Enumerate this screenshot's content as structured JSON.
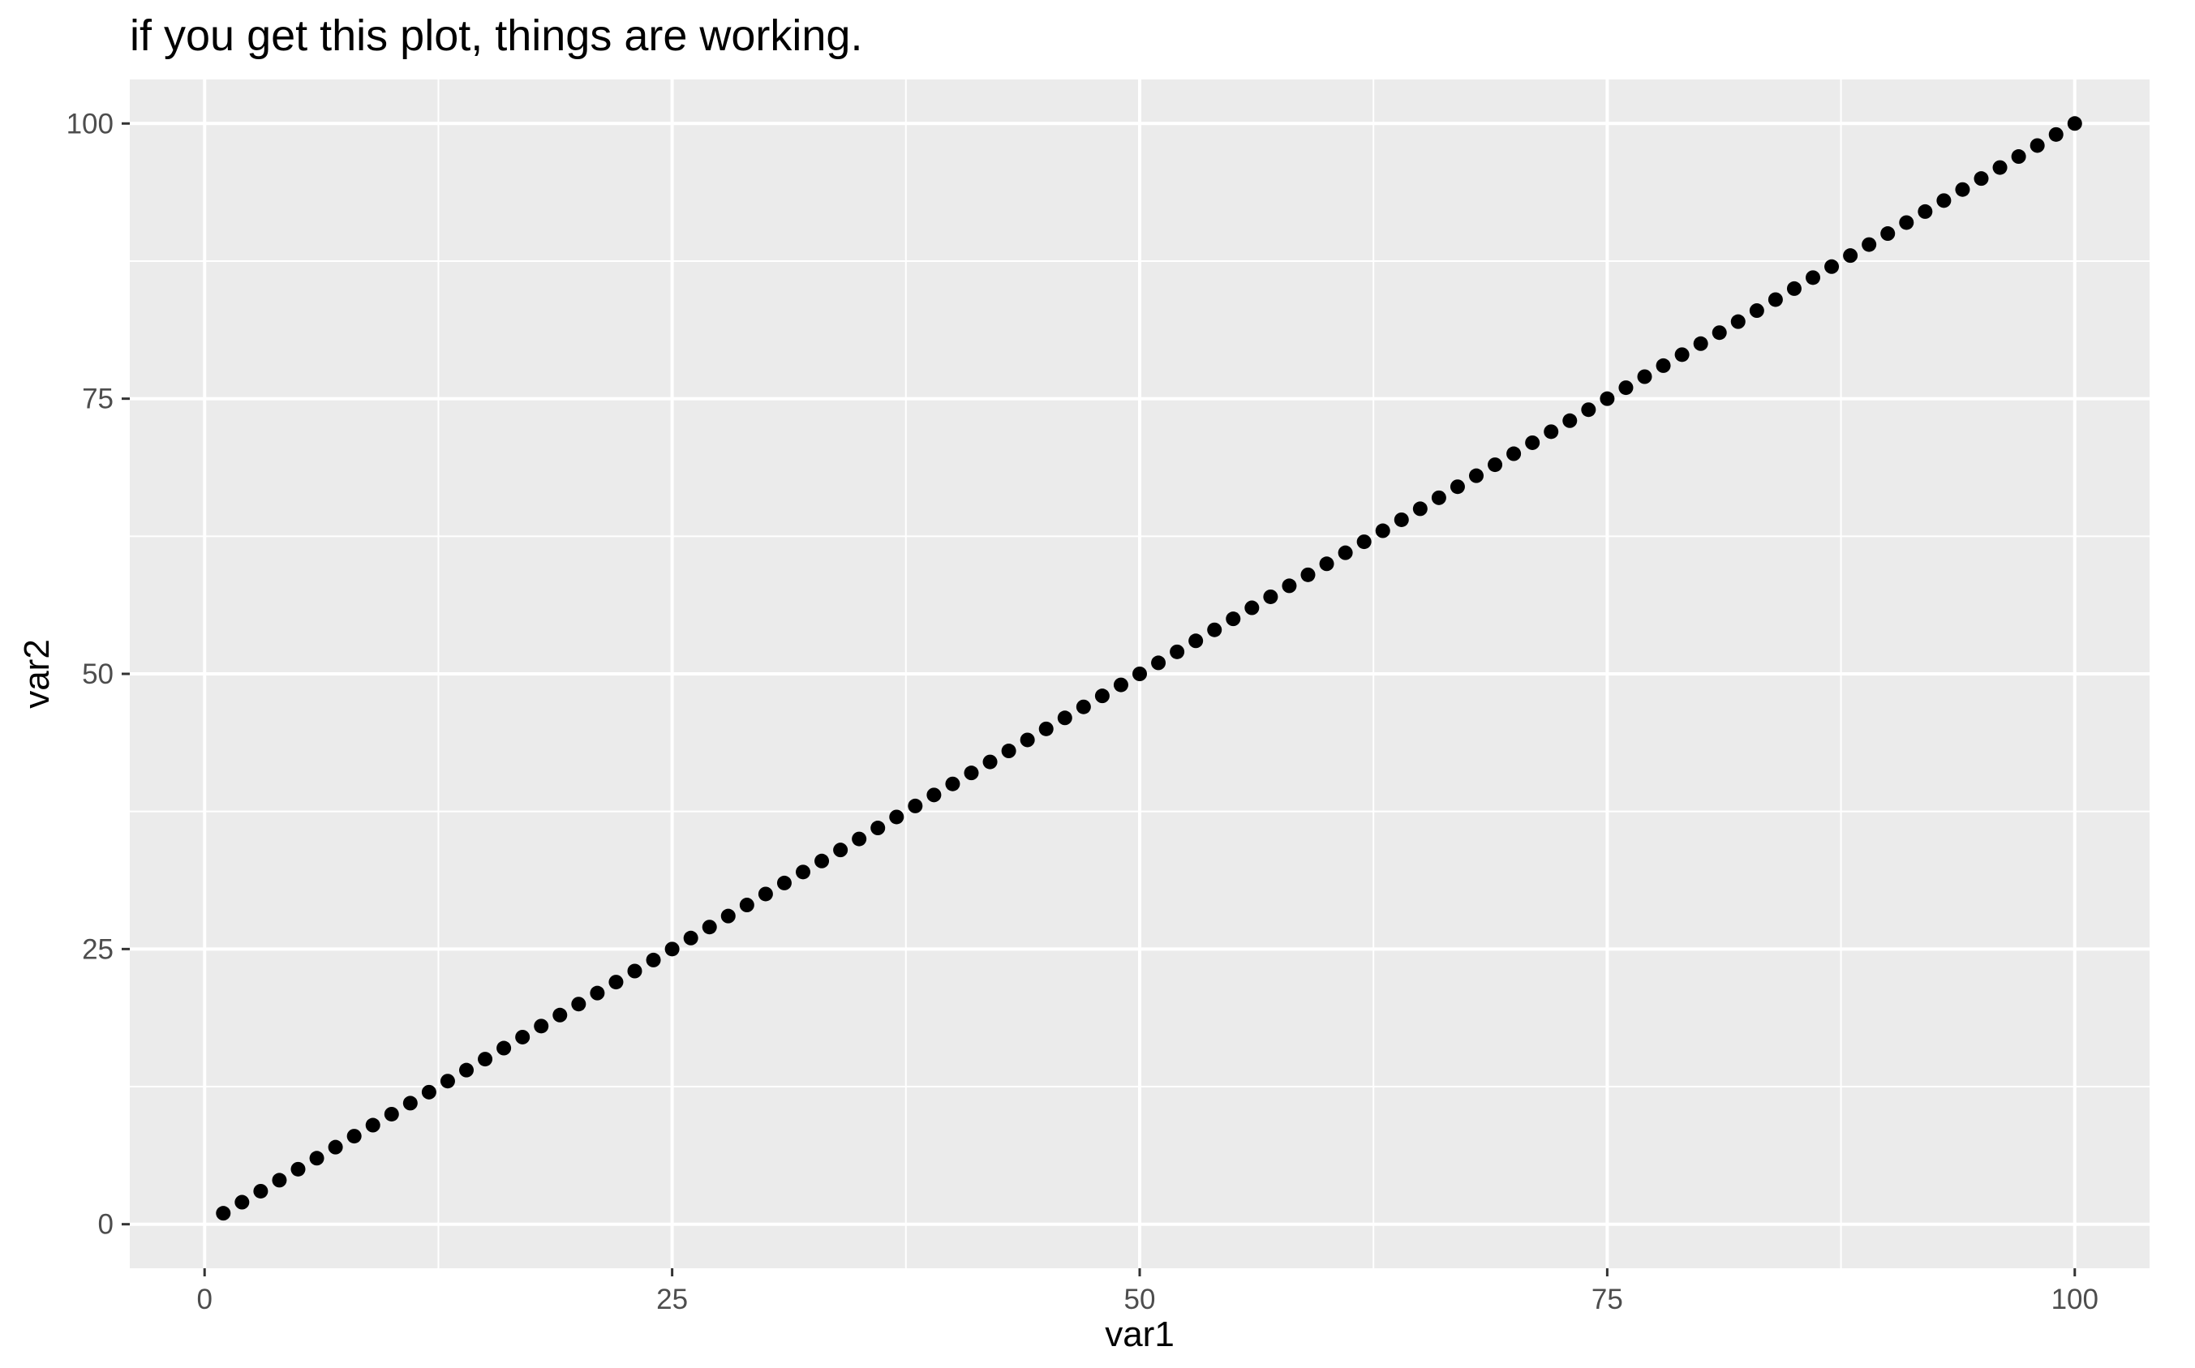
{
  "chart_data": {
    "type": "scatter",
    "title": "if you get this plot, things are working.",
    "xlabel": "var1",
    "ylabel": "var2",
    "xlim": [
      -4,
      104
    ],
    "ylim": [
      -4,
      104
    ],
    "x_ticks": [
      0,
      25,
      50,
      75,
      100
    ],
    "y_ticks": [
      0,
      25,
      50,
      75,
      100
    ],
    "x_tick_labels": [
      "0",
      "25",
      "50",
      "75",
      "100"
    ],
    "y_tick_labels": [
      "0",
      "25",
      "50",
      "75",
      "100"
    ],
    "x_minor_ticks": [
      12.5,
      37.5,
      62.5,
      87.5
    ],
    "y_minor_ticks": [
      12.5,
      37.5,
      62.5,
      87.5
    ],
    "grid": true,
    "colors": {
      "panel_background": "#ebebeb",
      "grid_line": "#ffffff",
      "point": "#000000",
      "tick_mark": "#333333"
    },
    "series": [
      {
        "x": [
          1,
          2,
          3,
          4,
          5,
          6,
          7,
          8,
          9,
          10,
          11,
          12,
          13,
          14,
          15,
          16,
          17,
          18,
          19,
          20,
          21,
          22,
          23,
          24,
          25,
          26,
          27,
          28,
          29,
          30,
          31,
          32,
          33,
          34,
          35,
          36,
          37,
          38,
          39,
          40,
          41,
          42,
          43,
          44,
          45,
          46,
          47,
          48,
          49,
          50,
          51,
          52,
          53,
          54,
          55,
          56,
          57,
          58,
          59,
          60,
          61,
          62,
          63,
          64,
          65,
          66,
          67,
          68,
          69,
          70,
          71,
          72,
          73,
          74,
          75,
          76,
          77,
          78,
          79,
          80,
          81,
          82,
          83,
          84,
          85,
          86,
          87,
          88,
          89,
          90,
          91,
          92,
          93,
          94,
          95,
          96,
          97,
          98,
          99,
          100
        ],
        "y": [
          1,
          2,
          3,
          4,
          5,
          6,
          7,
          8,
          9,
          10,
          11,
          12,
          13,
          14,
          15,
          16,
          17,
          18,
          19,
          20,
          21,
          22,
          23,
          24,
          25,
          26,
          27,
          28,
          29,
          30,
          31,
          32,
          33,
          34,
          35,
          36,
          37,
          38,
          39,
          40,
          41,
          42,
          43,
          44,
          45,
          46,
          47,
          48,
          49,
          50,
          51,
          52,
          53,
          54,
          55,
          56,
          57,
          58,
          59,
          60,
          61,
          62,
          63,
          64,
          65,
          66,
          67,
          68,
          69,
          70,
          71,
          72,
          73,
          74,
          75,
          76,
          77,
          78,
          79,
          80,
          81,
          82,
          83,
          84,
          85,
          86,
          87,
          88,
          89,
          90,
          91,
          92,
          93,
          94,
          95,
          96,
          97,
          98,
          99,
          100
        ]
      }
    ]
  }
}
